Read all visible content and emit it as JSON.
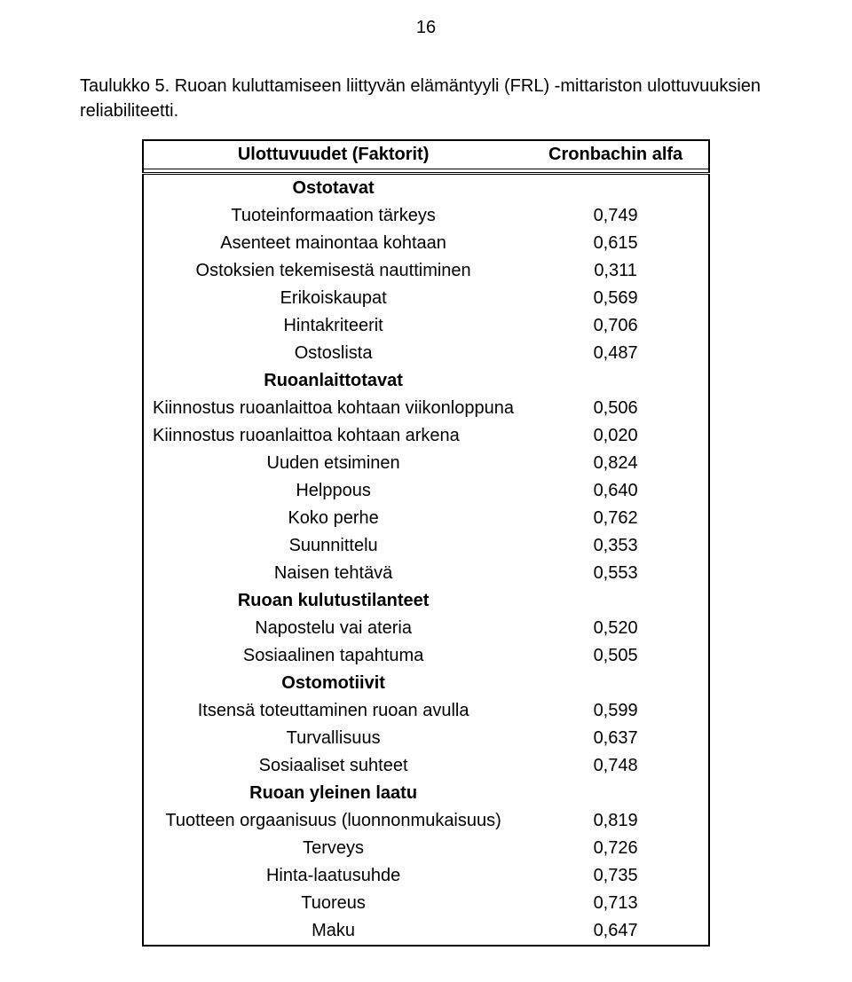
{
  "page_number": "16",
  "caption": "Taulukko 5. Ruoan kuluttamiseen liittyvän elämäntyyli (FRL) -mittariston ulottuvuuksien reliabiliteetti.",
  "header": {
    "col1": "Ulottuvuudet (Faktorit)",
    "col2": "Cronbachin alfa"
  },
  "sections": [
    {
      "title": "Ostotavat",
      "rows": [
        {
          "label": "Tuoteinformaation tärkeys",
          "value": "0,749"
        },
        {
          "label": "Asenteet mainontaa kohtaan",
          "value": "0,615"
        },
        {
          "label": "Ostoksien tekemisestä nauttiminen",
          "value": "0,311"
        },
        {
          "label": "Erikoiskaupat",
          "value": "0,569"
        },
        {
          "label": "Hintakriteerit",
          "value": "0,706"
        },
        {
          "label": "Ostoslista",
          "value": "0,487"
        }
      ]
    },
    {
      "title": "Ruoanlaittotavat",
      "rows": [
        {
          "label": "Kiinnostus ruoanlaittoa kohtaan viikonloppuna",
          "value": "0,506",
          "align": "left"
        },
        {
          "label": "Kiinnostus ruoanlaittoa kohtaan arkena",
          "value": "0,020",
          "align": "left"
        },
        {
          "label": "Uuden etsiminen",
          "value": "0,824"
        },
        {
          "label": "Helppous",
          "value": "0,640"
        },
        {
          "label": "Koko perhe",
          "value": "0,762"
        },
        {
          "label": "Suunnittelu",
          "value": "0,353"
        },
        {
          "label": "Naisen tehtävä",
          "value": "0,553"
        }
      ]
    },
    {
      "title": "Ruoan kulutustilanteet",
      "rows": [
        {
          "label": "Napostelu vai ateria",
          "value": "0,520"
        },
        {
          "label": "Sosiaalinen tapahtuma",
          "value": "0,505"
        }
      ]
    },
    {
      "title": "Ostomotiivit",
      "rows": [
        {
          "label": "Itsensä toteuttaminen ruoan avulla",
          "value": "0,599"
        },
        {
          "label": "Turvallisuus",
          "value": "0,637"
        },
        {
          "label": "Sosiaaliset suhteet",
          "value": "0,748"
        }
      ]
    },
    {
      "title": "Ruoan yleinen laatu",
      "rows": [
        {
          "label": "Tuotteen orgaanisuus (luonnonmukaisuus)",
          "value": "0,819"
        },
        {
          "label": "Terveys",
          "value": "0,726"
        },
        {
          "label": "Hinta-laatusuhde",
          "value": "0,735"
        },
        {
          "label": "Tuoreus",
          "value": "0,713"
        },
        {
          "label": "Maku",
          "value": "0,647"
        }
      ]
    }
  ]
}
